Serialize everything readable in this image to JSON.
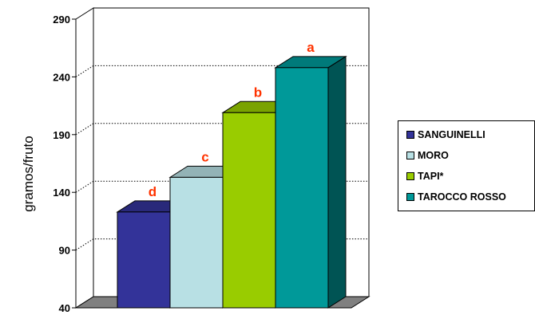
{
  "chart_data": {
    "type": "bar",
    "title": "",
    "xlabel": "",
    "ylabel": "gramos/fruto",
    "ylim": [
      40,
      290
    ],
    "yticks": [
      "40",
      "90",
      "140",
      "190",
      "240",
      "290"
    ],
    "grid": true,
    "legend_position": "right",
    "series": [
      {
        "name": "SANGUINELLI",
        "value": 123,
        "label": "d",
        "color": "#333399"
      },
      {
        "name": "MORO",
        "value": 153,
        "label": "c",
        "color": "#b8e0e4"
      },
      {
        "name": "TAPI*",
        "value": 209,
        "label": "b",
        "color": "#99cc00"
      },
      {
        "name": "TAROCCO ROSSO",
        "value": 248,
        "label": "a",
        "color": "#009999"
      }
    ],
    "label_color": "#ff3300"
  }
}
